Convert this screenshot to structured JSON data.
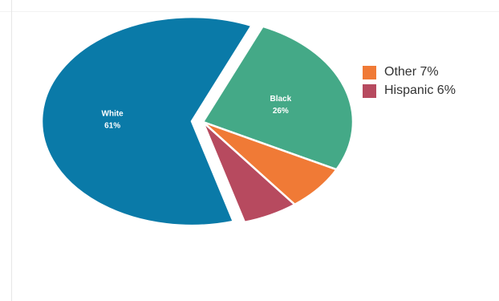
{
  "chart_data": {
    "type": "pie",
    "slices": [
      {
        "label": "White",
        "value": 61,
        "value_label": "61%",
        "color": "#0a7aa8",
        "exploded": true,
        "in_legend": false
      },
      {
        "label": "Black",
        "value": 26,
        "value_label": "26%",
        "color": "#44a987",
        "exploded": false,
        "in_legend": false
      },
      {
        "label": "Other",
        "value": 7,
        "value_label": "7%",
        "color": "#f07a36",
        "exploded": false,
        "in_legend": true
      },
      {
        "label": "Hispanic",
        "value": 6,
        "value_label": "6%",
        "color": "#b74a5f",
        "exploded": false,
        "in_legend": true
      }
    ],
    "legend": {
      "placement": "right",
      "entries": [
        {
          "text": "Other 7%",
          "color": "#f07a36"
        },
        {
          "text": "Hispanic 6%",
          "color": "#b74a5f"
        }
      ]
    }
  }
}
